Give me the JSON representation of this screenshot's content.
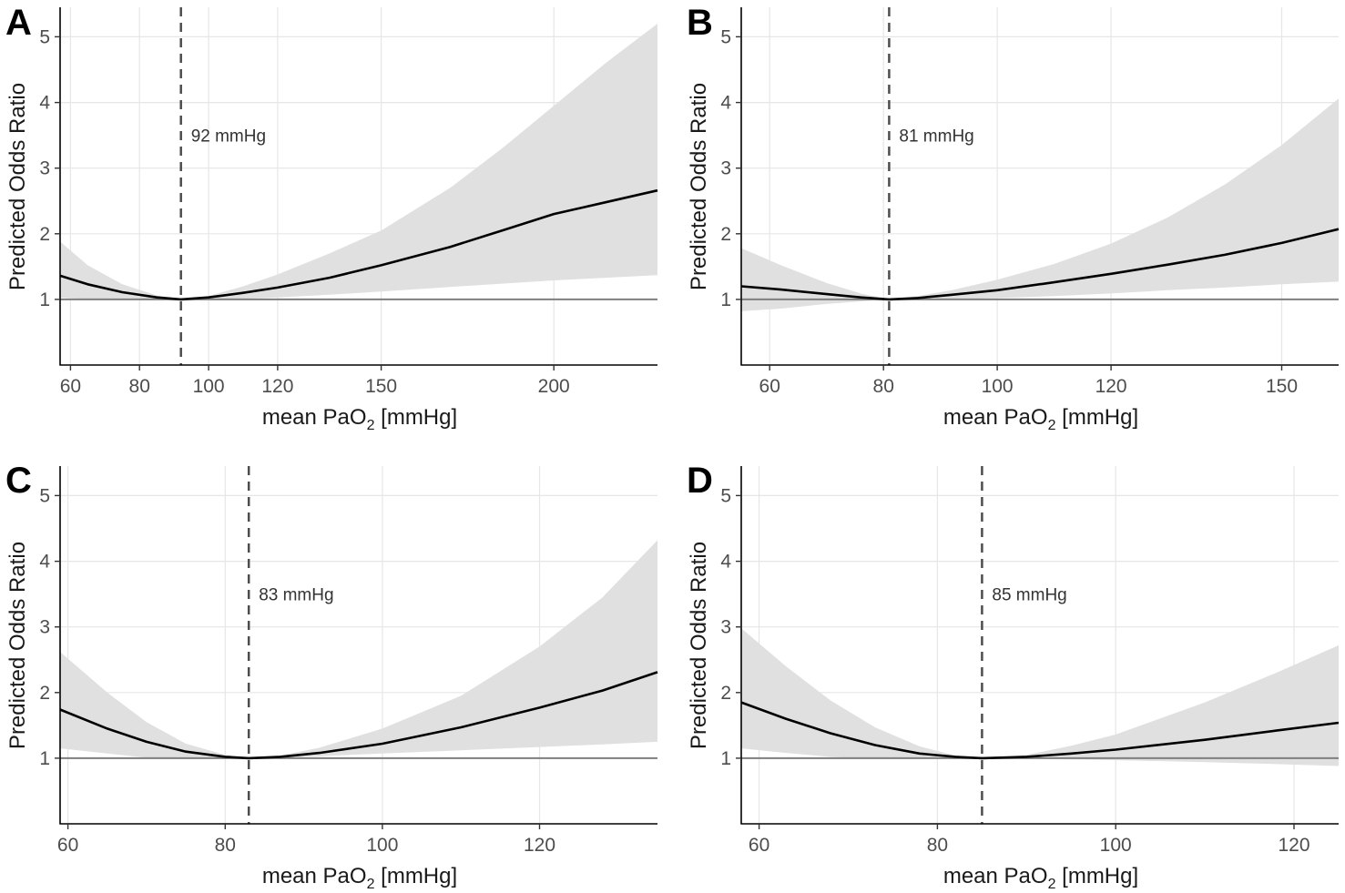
{
  "figure": {
    "background": "#ffffff"
  },
  "style": {
    "ribbon_color": "#e0e0e0",
    "line_color": "#000000",
    "ref_line_color": "#7f7f7f",
    "grid_color": "#e6e6e6",
    "vline_color": "#4d4d4d",
    "axis_color": "#000000"
  },
  "chart_data": [
    {
      "panel": "A",
      "type": "line",
      "title": "",
      "xlabel_prefix": "mean PaO",
      "xlabel_sub": "2",
      "xlabel_suffix": " [mmHg]",
      "ylabel": "Predicted Odds Ratio",
      "xlim": [
        57,
        230
      ],
      "ylim": [
        0,
        5.45
      ],
      "xticks": [
        60,
        80,
        100,
        120,
        150,
        200
      ],
      "xtick_labels": [
        "60",
        "80",
        "100",
        "120",
        "150",
        "200"
      ],
      "yticks": [
        1,
        2,
        3,
        4,
        5
      ],
      "ytick_labels": [
        "1",
        "2",
        "3",
        "4",
        "5"
      ],
      "reference_y": 1,
      "optimum_x": 92,
      "optimum_label": "92 mmHg",
      "optimum_label_y": 3.5,
      "series": [
        {
          "name": "Predicted OR",
          "x": [
            57,
            65,
            75,
            85,
            92,
            100,
            110,
            120,
            135,
            150,
            170,
            185,
            200,
            215,
            230
          ],
          "values": [
            1.36,
            1.23,
            1.11,
            1.03,
            1.0,
            1.03,
            1.1,
            1.18,
            1.33,
            1.52,
            1.8,
            2.05,
            2.3,
            2.48,
            2.66
          ]
        }
      ],
      "ribbon": {
        "x": [
          57,
          65,
          75,
          85,
          92,
          100,
          110,
          120,
          135,
          150,
          170,
          185,
          200,
          215,
          230
        ],
        "lower": [
          1.03,
          1.0,
          0.99,
          0.99,
          1.0,
          1.0,
          1.01,
          1.03,
          1.07,
          1.12,
          1.19,
          1.24,
          1.29,
          1.33,
          1.37
        ],
        "upper": [
          1.88,
          1.52,
          1.23,
          1.06,
          1.0,
          1.05,
          1.2,
          1.38,
          1.7,
          2.05,
          2.7,
          3.3,
          3.95,
          4.6,
          5.2
        ]
      }
    },
    {
      "panel": "B",
      "type": "line",
      "title": "",
      "xlabel_prefix": "mean PaO",
      "xlabel_sub": "2",
      "xlabel_suffix": " [mmHg]",
      "ylabel": "Predicted Odds Ratio",
      "xlim": [
        55,
        160
      ],
      "ylim": [
        0,
        5.45
      ],
      "xticks": [
        60,
        80,
        100,
        120,
        150
      ],
      "xtick_labels": [
        "60",
        "80",
        "100",
        "120",
        "150"
      ],
      "yticks": [
        1,
        2,
        3,
        4,
        5
      ],
      "ytick_labels": [
        "1",
        "2",
        "3",
        "4",
        "5"
      ],
      "reference_y": 1,
      "optimum_x": 81,
      "optimum_label": "81 mmHg",
      "optimum_label_y": 3.5,
      "series": [
        {
          "name": "Predicted OR",
          "x": [
            55,
            62,
            70,
            76,
            81,
            86,
            92,
            100,
            110,
            120,
            130,
            140,
            150,
            160
          ],
          "values": [
            1.2,
            1.15,
            1.08,
            1.03,
            1.0,
            1.02,
            1.07,
            1.14,
            1.26,
            1.39,
            1.53,
            1.68,
            1.86,
            2.07
          ]
        }
      ],
      "ribbon": {
        "x": [
          55,
          62,
          70,
          76,
          81,
          86,
          92,
          100,
          110,
          120,
          130,
          140,
          150,
          160
        ],
        "lower": [
          0.82,
          0.86,
          0.93,
          0.97,
          1.0,
          1.0,
          1.0,
          1.02,
          1.05,
          1.09,
          1.14,
          1.18,
          1.23,
          1.27
        ],
        "upper": [
          1.78,
          1.52,
          1.25,
          1.09,
          1.0,
          1.05,
          1.14,
          1.3,
          1.54,
          1.85,
          2.25,
          2.75,
          3.35,
          4.06
        ]
      }
    },
    {
      "panel": "C",
      "type": "line",
      "title": "",
      "xlabel_prefix": "mean PaO",
      "xlabel_sub": "2",
      "xlabel_suffix": " [mmHg]",
      "ylabel": "Predicted Odds Ratio",
      "xlim": [
        59,
        135
      ],
      "ylim": [
        0,
        5.45
      ],
      "xticks": [
        60,
        80,
        100,
        120
      ],
      "xtick_labels": [
        "60",
        "80",
        "100",
        "120"
      ],
      "yticks": [
        1,
        2,
        3,
        4,
        5
      ],
      "ytick_labels": [
        "1",
        "2",
        "3",
        "4",
        "5"
      ],
      "reference_y": 1,
      "optimum_x": 83,
      "optimum_label": "83 mmHg",
      "optimum_label_y": 3.5,
      "series": [
        {
          "name": "Predicted OR",
          "x": [
            59,
            65,
            70,
            75,
            80,
            83,
            87,
            92,
            100,
            110,
            120,
            128,
            135
          ],
          "values": [
            1.74,
            1.45,
            1.25,
            1.1,
            1.02,
            1.0,
            1.02,
            1.08,
            1.22,
            1.47,
            1.77,
            2.03,
            2.31
          ]
        }
      ],
      "ribbon": {
        "x": [
          59,
          65,
          70,
          75,
          80,
          83,
          87,
          92,
          100,
          110,
          120,
          128,
          135
        ],
        "lower": [
          1.15,
          1.07,
          1.01,
          0.99,
          0.99,
          1.0,
          1.01,
          1.03,
          1.07,
          1.12,
          1.17,
          1.21,
          1.25
        ],
        "upper": [
          2.62,
          2.0,
          1.55,
          1.22,
          1.05,
          1.0,
          1.04,
          1.16,
          1.45,
          1.95,
          2.7,
          3.45,
          4.32
        ]
      }
    },
    {
      "panel": "D",
      "type": "line",
      "title": "",
      "xlabel_prefix": "mean PaO",
      "xlabel_sub": "2",
      "xlabel_suffix": " [mmHg]",
      "ylabel": "Predicted Odds Ratio",
      "xlim": [
        58,
        125
      ],
      "ylim": [
        0,
        5.45
      ],
      "xticks": [
        60,
        80,
        100,
        120
      ],
      "xtick_labels": [
        "60",
        "80",
        "100",
        "120"
      ],
      "yticks": [
        1,
        2,
        3,
        4,
        5
      ],
      "ytick_labels": [
        "1",
        "2",
        "3",
        "4",
        "5"
      ],
      "reference_y": 1,
      "optimum_x": 85,
      "optimum_label": "85 mmHg",
      "optimum_label_y": 3.5,
      "series": [
        {
          "name": "Predicted OR",
          "x": [
            58,
            63,
            68,
            73,
            78,
            82,
            85,
            90,
            95,
            100,
            110,
            118,
            125
          ],
          "values": [
            1.85,
            1.6,
            1.38,
            1.2,
            1.07,
            1.02,
            1.0,
            1.02,
            1.07,
            1.13,
            1.28,
            1.42,
            1.54
          ]
        }
      ],
      "ribbon": {
        "x": [
          58,
          63,
          68,
          73,
          78,
          82,
          85,
          90,
          95,
          100,
          110,
          118,
          125
        ],
        "lower": [
          1.15,
          1.08,
          1.02,
          0.99,
          0.99,
          1.0,
          1.0,
          0.99,
          0.98,
          0.97,
          0.94,
          0.91,
          0.88
        ],
        "upper": [
          2.98,
          2.4,
          1.88,
          1.47,
          1.18,
          1.04,
          1.0,
          1.05,
          1.19,
          1.36,
          1.85,
          2.3,
          2.72
        ]
      }
    }
  ]
}
